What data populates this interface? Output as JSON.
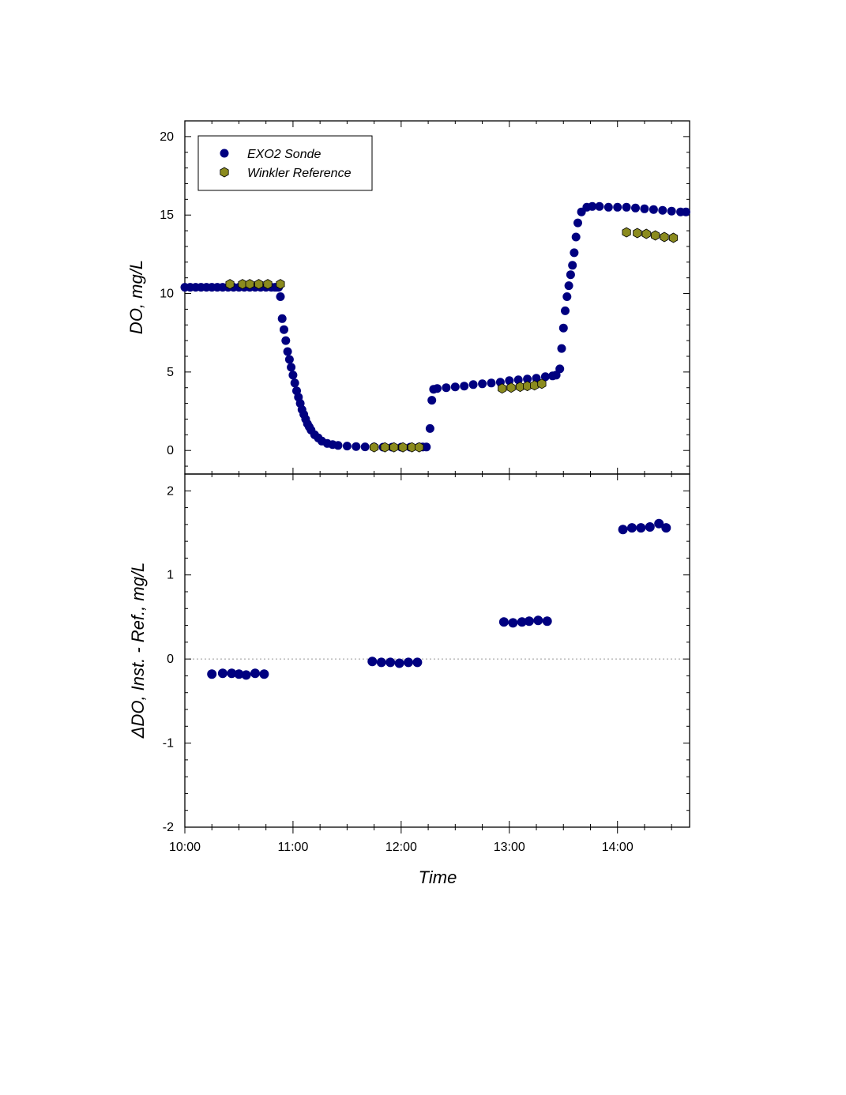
{
  "chart_data": [
    {
      "type": "scatter",
      "panel": "top",
      "ylabel": "DO, mg/L",
      "xlabel": "",
      "ylim": [
        -1.5,
        21
      ],
      "xlim": [
        "10:00",
        "14:40"
      ],
      "yticks": [
        0,
        5,
        10,
        15,
        20
      ],
      "legend": {
        "position": "top-left",
        "entries": [
          "EXO2 Sonde",
          "Winkler Reference"
        ]
      },
      "series": [
        {
          "name": "EXO2 Sonde",
          "marker": "circle",
          "color": "#000080",
          "x": [
            "10:00",
            "10:03",
            "10:06",
            "10:09",
            "10:12",
            "10:15",
            "10:18",
            "10:21",
            "10:24",
            "10:27",
            "10:30",
            "10:33",
            "10:36",
            "10:39",
            "10:42",
            "10:45",
            "10:48",
            "10:50",
            "10:51",
            "10:52",
            "10:53",
            "10:54",
            "10:55",
            "10:56",
            "10:57",
            "10:58",
            "10:59",
            "11:00",
            "11:01",
            "11:02",
            "11:03",
            "11:04",
            "11:05",
            "11:06",
            "11:07",
            "11:08",
            "11:09",
            "11:10",
            "11:12",
            "11:14",
            "11:16",
            "11:19",
            "11:22",
            "11:25",
            "11:30",
            "11:35",
            "11:40",
            "11:45",
            "11:50",
            "11:55",
            "12:00",
            "12:05",
            "12:10",
            "12:12",
            "12:14",
            "12:16",
            "12:17",
            "12:18",
            "12:20",
            "12:25",
            "12:30",
            "12:35",
            "12:40",
            "12:45",
            "12:50",
            "12:55",
            "13:00",
            "13:05",
            "13:10",
            "13:15",
            "13:20",
            "13:24",
            "13:26",
            "13:28",
            "13:29",
            "13:30",
            "13:31",
            "13:32",
            "13:33",
            "13:34",
            "13:35",
            "13:36",
            "13:37",
            "13:38",
            "13:40",
            "13:43",
            "13:46",
            "13:50",
            "13:55",
            "14:00",
            "14:05",
            "14:10",
            "14:15",
            "14:20",
            "14:25",
            "14:30",
            "14:35",
            "14:38"
          ],
          "y": [
            10.4,
            10.4,
            10.4,
            10.4,
            10.4,
            10.4,
            10.4,
            10.4,
            10.4,
            10.4,
            10.4,
            10.4,
            10.4,
            10.4,
            10.4,
            10.4,
            10.4,
            10.4,
            10.4,
            10.4,
            9.8,
            8.4,
            7.7,
            7.0,
            6.3,
            5.8,
            5.3,
            4.8,
            4.3,
            3.8,
            3.4,
            3.0,
            2.6,
            2.3,
            2.0,
            1.7,
            1.5,
            1.3,
            1.0,
            0.8,
            0.6,
            0.45,
            0.38,
            0.32,
            0.28,
            0.25,
            0.23,
            0.22,
            0.21,
            0.21,
            0.21,
            0.21,
            0.22,
            0.22,
            0.22,
            1.4,
            3.2,
            3.9,
            3.95,
            4.0,
            4.05,
            4.1,
            4.2,
            4.25,
            4.3,
            4.35,
            4.45,
            4.5,
            4.55,
            4.6,
            4.7,
            4.75,
            4.8,
            5.2,
            6.5,
            7.8,
            8.9,
            9.8,
            10.5,
            11.2,
            11.8,
            12.6,
            13.6,
            14.5,
            15.2,
            15.5,
            15.55,
            15.55,
            15.5,
            15.5,
            15.5,
            15.45,
            15.4,
            15.35,
            15.3,
            15.25,
            15.2,
            15.2
          ]
        },
        {
          "name": "Winkler Reference",
          "marker": "hexagon",
          "color": "#8b8b1e",
          "x": [
            "10:25",
            "10:32",
            "10:36",
            "10:41",
            "10:46",
            "10:53",
            "11:45",
            "11:51",
            "11:56",
            "12:01",
            "12:06",
            "12:10",
            "12:56",
            "13:01",
            "13:06",
            "13:10",
            "13:14",
            "13:18",
            "14:05",
            "14:11",
            "14:16",
            "14:21",
            "14:26",
            "14:31"
          ],
          "y": [
            10.6,
            10.6,
            10.6,
            10.6,
            10.6,
            10.6,
            0.2,
            0.2,
            0.2,
            0.2,
            0.2,
            0.2,
            3.95,
            4.0,
            4.05,
            4.1,
            4.15,
            4.25,
            13.9,
            13.85,
            13.8,
            13.7,
            13.6,
            13.55
          ]
        }
      ]
    },
    {
      "type": "scatter",
      "panel": "bottom",
      "ylabel": "ΔDO, Inst. - Ref., mg/L",
      "xlabel": "Time",
      "ylim": [
        -2,
        2.2
      ],
      "xlim": [
        "10:00",
        "14:40"
      ],
      "yticks": [
        -2,
        -1,
        0,
        1,
        2
      ],
      "xticks": [
        "10:00",
        "11:00",
        "12:00",
        "13:00",
        "14:00"
      ],
      "zero_line": true,
      "series": [
        {
          "name": "",
          "marker": "circle",
          "color": "#000080",
          "x": [
            "10:15",
            "10:21",
            "10:26",
            "10:30",
            "10:34",
            "10:39",
            "10:44",
            "11:44",
            "11:49",
            "11:54",
            "11:59",
            "12:04",
            "12:09",
            "12:57",
            "13:02",
            "13:07",
            "13:11",
            "13:16",
            "13:21",
            "14:03",
            "14:08",
            "14:13",
            "14:18",
            "14:23",
            "14:27"
          ],
          "y": [
            -0.18,
            -0.17,
            -0.17,
            -0.18,
            -0.19,
            -0.17,
            -0.18,
            -0.03,
            -0.04,
            -0.04,
            -0.05,
            -0.04,
            -0.04,
            0.44,
            0.43,
            0.44,
            0.45,
            0.46,
            0.45,
            1.54,
            1.56,
            1.56,
            1.57,
            1.61,
            1.56
          ]
        }
      ]
    }
  ]
}
